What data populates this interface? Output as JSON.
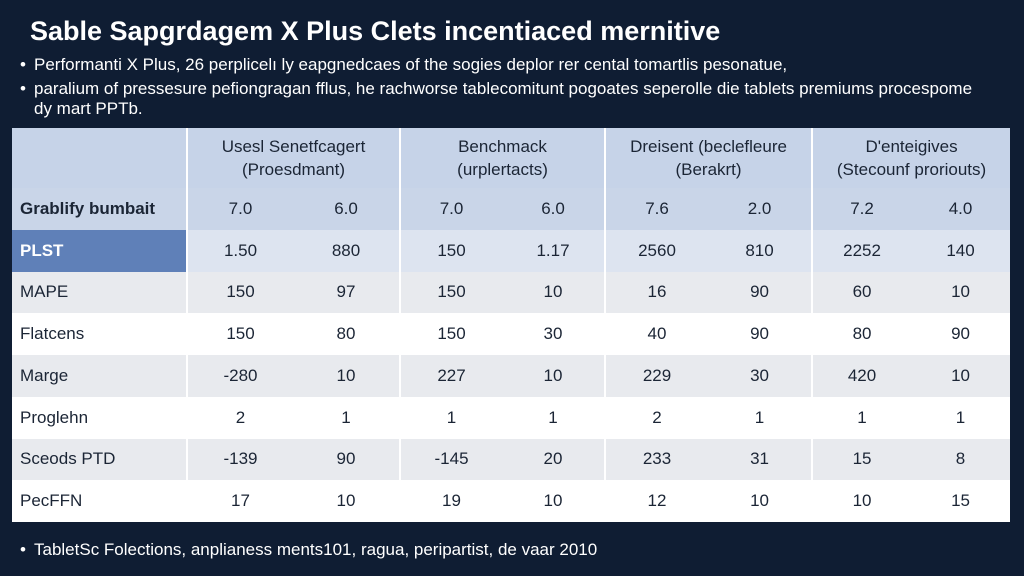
{
  "header": {
    "title": "Sable Sapgrdagem X Plus Clets incentiaced mernitive"
  },
  "bullets": [
    "Performanti X Plus, 26 perplicelı ly eapgnedcaes of the sogies deplor rer cental tomartlis pesonatue,",
    "paralium of pressesure pefiongragan fflus, he rachworse tablecomitunt pogoates seperolle die tablets premiums procespome dy mart PPTb."
  ],
  "table": {
    "columns": [
      [
        "Usesl Senetfcagert",
        "(Proesdmant)"
      ],
      [
        "Benchmack",
        "(urplertacts)"
      ],
      [
        "Dreisent (beclefleure",
        "(Berakrt)"
      ],
      [
        "D'enteigives",
        "(Stecounf proriouts)"
      ]
    ],
    "rows": [
      [
        "Grablify bumbait",
        "7.0",
        "6.0",
        "7.0",
        "6.0",
        "7.6",
        "2.0",
        "7.2",
        "4.0"
      ],
      [
        "PLST",
        "1.50",
        "880",
        "150",
        "1.17",
        "2560",
        "810",
        "2252",
        "140"
      ],
      [
        "MAPE",
        "150",
        "97",
        "150",
        "10",
        "16",
        "90",
        "60",
        "10"
      ],
      [
        "Flatcens",
        "150",
        "80",
        "150",
        "30",
        "40",
        "90",
        "80",
        "90"
      ],
      [
        "Marge",
        "-280",
        "10",
        "227",
        "10",
        "229",
        "30",
        "420",
        "10"
      ],
      [
        "Proglehn",
        "2",
        "1",
        "1",
        "1",
        "2",
        "1",
        "1",
        "1"
      ],
      [
        "Sceods PTD",
        "-139",
        "90",
        "-145",
        "20",
        "233",
        "31",
        "15",
        "8"
      ],
      [
        "PecFFN",
        "17",
        "10",
        "19",
        "10",
        "12",
        "10",
        "10",
        "15"
      ]
    ]
  },
  "footer": "TabletSc Folections, anplianess ments101, ragua, peripartist, de vaar 2010"
}
